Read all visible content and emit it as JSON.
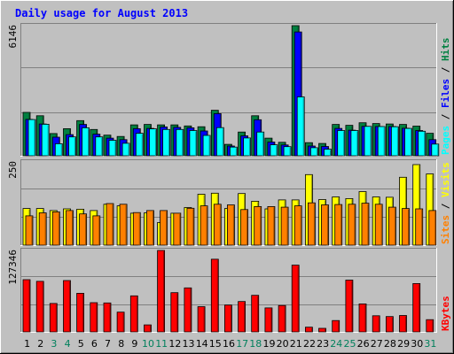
{
  "chart_data": {
    "type": "bar",
    "title": "Daily usage for August 2013",
    "categories": [
      "1",
      "2",
      "3",
      "4",
      "5",
      "6",
      "7",
      "8",
      "9",
      "10",
      "11",
      "12",
      "13",
      "14",
      "15",
      "16",
      "17",
      "18",
      "19",
      "20",
      "21",
      "22",
      "23",
      "24",
      "25",
      "26",
      "27",
      "28",
      "29",
      "30",
      "31"
    ],
    "weekend_days": [
      "3",
      "4",
      "10",
      "11",
      "17",
      "18",
      "24",
      "25",
      "31"
    ],
    "panels": [
      {
        "name": "hits-files-pages",
        "ymax": 6146,
        "ymax_label": "6146",
        "grid": true,
        "side_label": [
          "Pages",
          "Files",
          "Hits"
        ],
        "series": [
          {
            "name": "Hits",
            "color": "#008040",
            "values": [
              2050,
              1890,
              1050,
              1280,
              1660,
              1240,
              975,
              910,
              1460,
              1480,
              1460,
              1460,
              1410,
              1370,
              2150,
              540,
              1120,
              1890,
              830,
              635,
              6146,
              620,
              580,
              1480,
              1440,
              1560,
              1520,
              1500,
              1480,
              1400,
              1060
            ]
          },
          {
            "name": "Files",
            "color": "#0000ff",
            "values": [
              1720,
              1500,
              880,
              1000,
              1480,
              1020,
              830,
              760,
              1280,
              1290,
              1360,
              1340,
              1320,
              1170,
              1990,
              460,
              940,
              1700,
              650,
              510,
              5850,
              460,
              440,
              1290,
              1210,
              1390,
              1380,
              1380,
              1300,
              1190,
              760
            ]
          },
          {
            "name": "Pages",
            "color": "#00ffff",
            "values": [
              1710,
              1490,
              570,
              890,
              1320,
              890,
              730,
              590,
              1060,
              1270,
              1240,
              1240,
              1190,
              960,
              1330,
              410,
              840,
              1120,
              520,
              430,
              2780,
              380,
              310,
              1190,
              1190,
              1390,
              1380,
              1370,
              1290,
              1160,
              550
            ]
          }
        ]
      },
      {
        "name": "visits-sites",
        "ymax": 250,
        "ymax_label": "250",
        "grid": true,
        "side_label": [
          "Sites",
          "Visits"
        ],
        "series": [
          {
            "name": "Visits",
            "color": "#ffff00",
            "values": [
              110,
              110,
              104,
              109,
              108,
              104,
              123,
              118,
              96,
              97,
              68,
              96,
              113,
              153,
              156,
              110,
              155,
              132,
              109,
              136,
              136,
              212,
              137,
              145,
              140,
              161,
              145,
              144,
              204,
              242,
              214
            ]
          },
          {
            "name": "Sites",
            "color": "#ff8000",
            "values": [
              88,
              97,
              100,
              104,
              94,
              88,
              125,
              123,
              98,
              104,
              104,
              96,
              111,
              118,
              123,
              121,
              107,
              116,
              116,
              114,
              118,
              127,
              121,
              122,
              123,
              126,
              123,
              114,
              110,
              109,
              104
            ]
          }
        ]
      },
      {
        "name": "kbytes",
        "ymax": 127346,
        "ymax_label": "127346",
        "grid": true,
        "side_label": [
          "KBytes"
        ],
        "series": [
          {
            "name": "KBytes",
            "color": "#ff0000",
            "values": [
              81600,
              79100,
              44500,
              80300,
              60400,
              45700,
              45300,
              30800,
              56300,
              10900,
              127346,
              61300,
              68800,
              39400,
              113600,
              42000,
              47500,
              57100,
              37500,
              41300,
              104300,
              7300,
              5500,
              17700,
              81000,
              43700,
              25200,
              24000,
              25600,
              75600,
              19100
            ]
          }
        ]
      }
    ]
  }
}
